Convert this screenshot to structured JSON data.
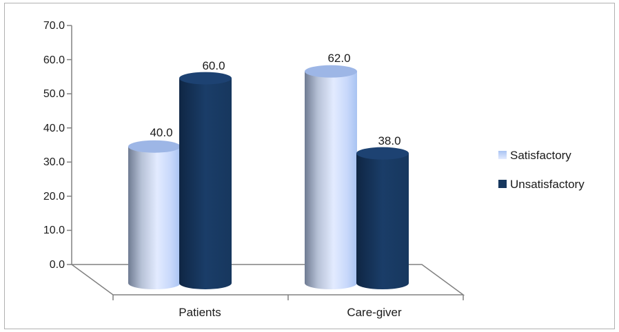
{
  "chart_data": {
    "type": "bar",
    "categories": [
      "Patients",
      "Care-giver"
    ],
    "series": [
      {
        "name": "Satisfactory",
        "values": [
          40.0,
          62.0
        ]
      },
      {
        "name": "Unsatisfactory",
        "values": [
          60.0,
          38.0
        ]
      }
    ],
    "data_labels": [
      [
        "40.0",
        "62.0"
      ],
      [
        "60.0",
        "38.0"
      ]
    ],
    "y_ticks": [
      "0.0",
      "10.0",
      "20.0",
      "30.0",
      "40.0",
      "50.0",
      "60.0",
      "70.0"
    ],
    "ylim": [
      0,
      70
    ],
    "grid": false,
    "legend_position": "right",
    "style": "3d-cylinder",
    "colors": {
      "satisfactory_light": "#d4e2ff",
      "satisfactory_mid": "#a9c3f2",
      "satisfactory_dark": "#6f7b92",
      "unsatisfactory": "#17375e",
      "unsatisfactory_dark": "#0f2644",
      "axis": "#808080"
    }
  }
}
